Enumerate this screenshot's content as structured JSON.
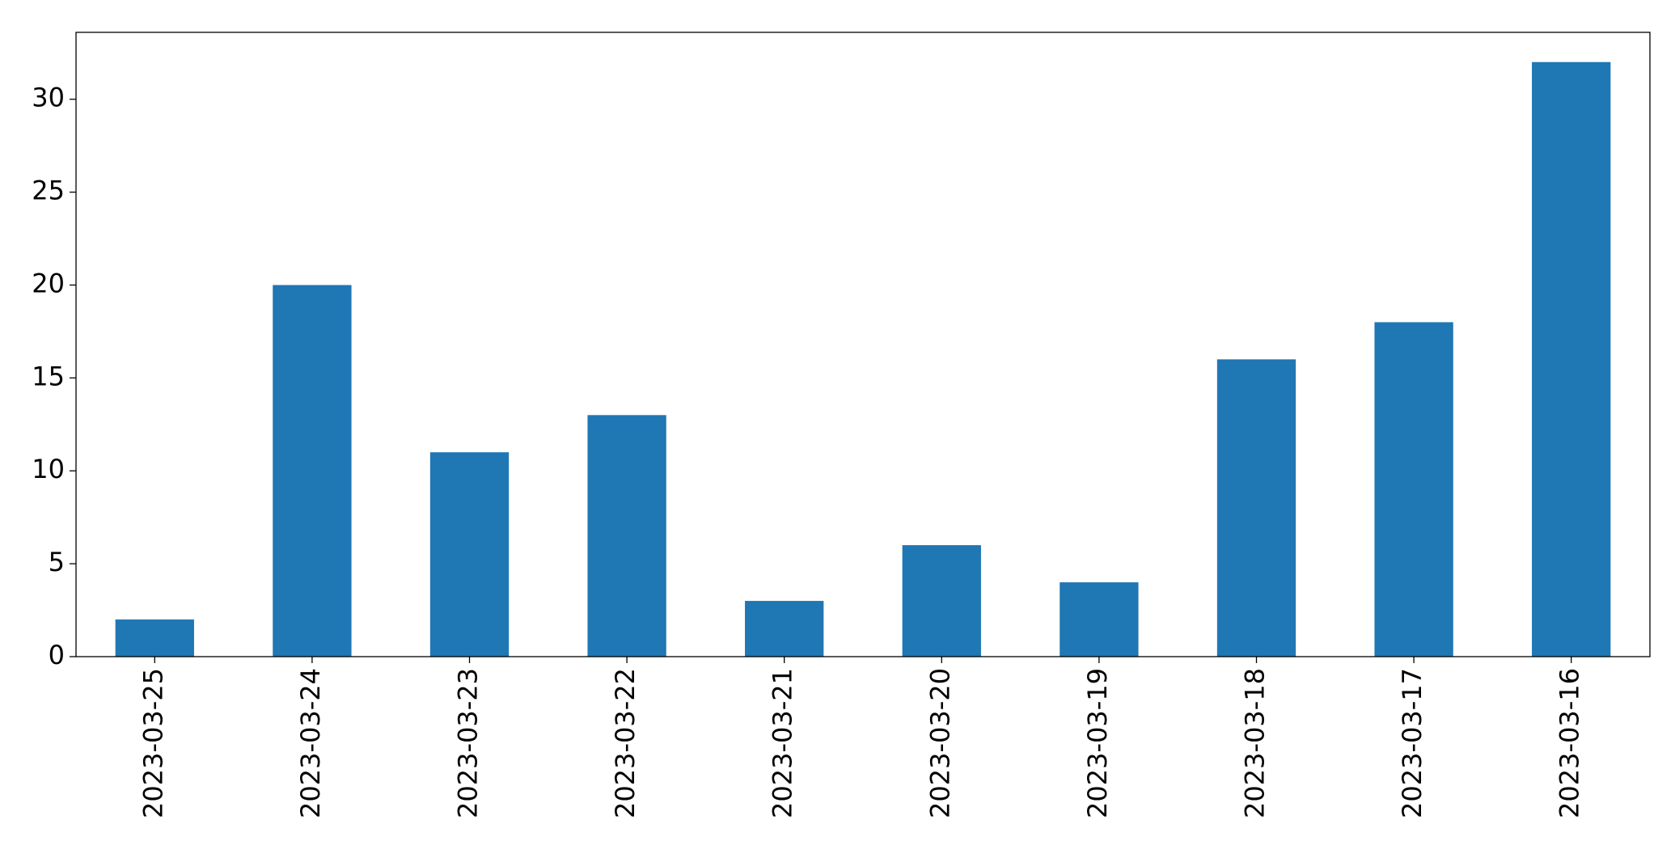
{
  "chart_data": {
    "type": "bar",
    "categories": [
      "2023-03-25",
      "2023-03-24",
      "2023-03-23",
      "2023-03-22",
      "2023-03-21",
      "2023-03-20",
      "2023-03-19",
      "2023-03-18",
      "2023-03-17",
      "2023-03-16"
    ],
    "values": [
      2,
      20,
      11,
      13,
      3,
      6,
      4,
      16,
      18,
      32
    ],
    "color": "#1f77b4",
    "ylim": [
      0,
      33.6
    ],
    "yticks": [
      0,
      5,
      10,
      15,
      20,
      25,
      30
    ],
    "grid": false
  }
}
